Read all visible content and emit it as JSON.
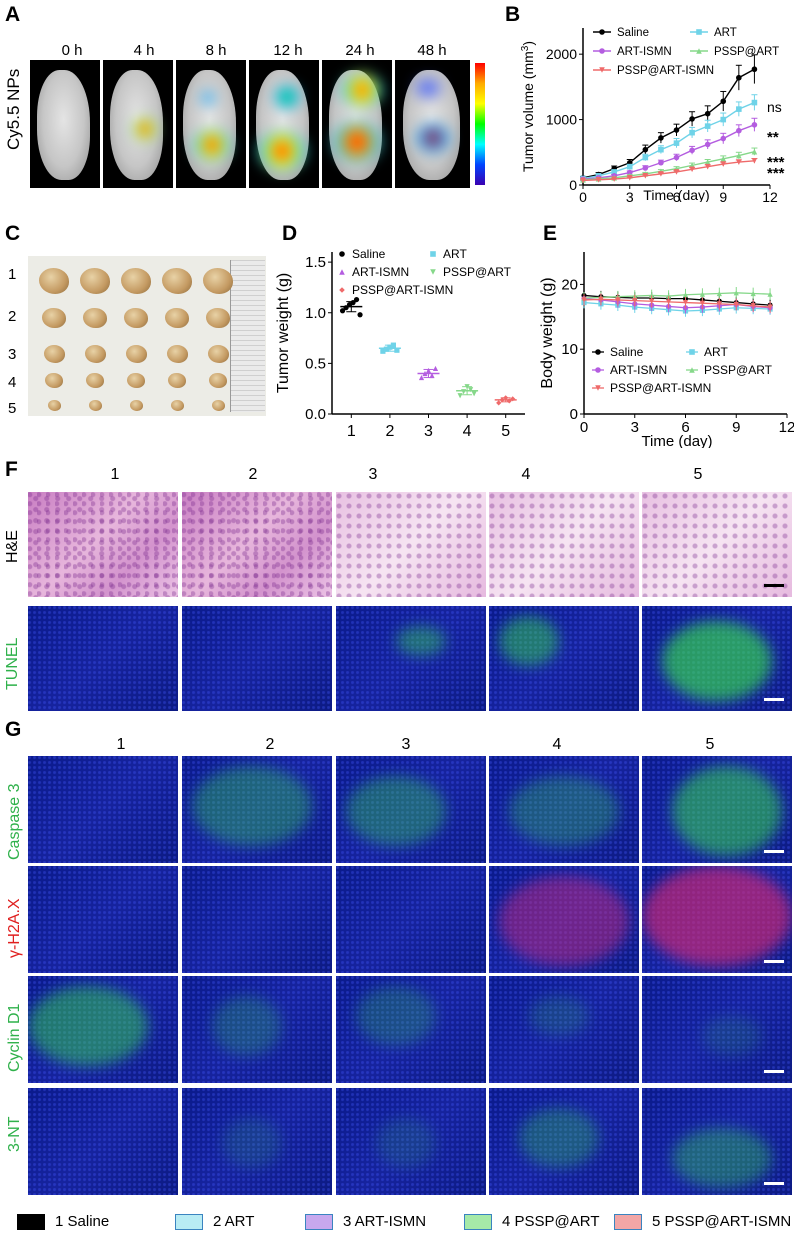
{
  "panel_labels": [
    "A",
    "B",
    "C",
    "D",
    "E",
    "F",
    "G"
  ],
  "panelA": {
    "timepoints": [
      "0 h",
      "4 h",
      "8 h",
      "12 h",
      "24 h",
      "48 h"
    ],
    "row_label": "Cy5.5 NPs"
  },
  "panelC": {
    "row_numbers": [
      "1",
      "2",
      "3",
      "4",
      "5"
    ]
  },
  "groups": [
    "1",
    "2",
    "3",
    "4",
    "5"
  ],
  "panelF": {
    "rows": [
      "H&E",
      "TUNEL"
    ]
  },
  "panelG": {
    "rows": [
      "Caspase 3",
      "γ-H2A.X",
      "Cyclin D1",
      "3-NT"
    ]
  },
  "legend": [
    {
      "label": "1 Saline",
      "color": "#000000"
    },
    {
      "label": "2 ART",
      "color": "#b8ecf4"
    },
    {
      "label": "3 ART-ISMN",
      "color": "#c8a8ee"
    },
    {
      "label": "4 PSSP@ART",
      "color": "#a6eaa8"
    },
    {
      "label": "5 PSSP@ART-ISMN",
      "color": "#f2a6a6"
    }
  ],
  "chart_data": [
    {
      "type": "line",
      "panel": "B",
      "xlabel": "Time (day)",
      "ylabel": "Tumor volume (mm",
      "ylabel_sup": "3",
      "ylabel_end": ")",
      "xlim": [
        0,
        12
      ],
      "ylim": [
        0,
        2400
      ],
      "xticks": [
        "0",
        "3",
        "6",
        "9",
        "12"
      ],
      "yticks": [
        "0",
        "1000",
        "2000"
      ],
      "x": [
        0,
        1,
        2,
        3,
        4,
        5,
        6,
        7,
        8,
        9,
        10,
        11
      ],
      "series": [
        {
          "name": "Saline",
          "color": "#000000",
          "marker": "circle",
          "values": [
            110,
            160,
            250,
            340,
            540,
            720,
            840,
            1010,
            1090,
            1280,
            1640,
            1770
          ],
          "err": [
            20,
            30,
            40,
            50,
            70,
            80,
            90,
            110,
            120,
            150,
            190,
            220
          ]
        },
        {
          "name": "ART",
          "color": "#6fd3e8",
          "marker": "square",
          "values": [
            100,
            140,
            200,
            280,
            420,
            540,
            640,
            800,
            900,
            1000,
            1160,
            1260
          ],
          "err": [
            15,
            20,
            25,
            35,
            50,
            60,
            70,
            80,
            90,
            100,
            110,
            120
          ]
        },
        {
          "name": "ART-ISMN",
          "color": "#b45de0",
          "marker": "circle",
          "values": [
            90,
            110,
            140,
            190,
            260,
            340,
            420,
            530,
            620,
            710,
            830,
            920
          ],
          "err": [
            12,
            15,
            20,
            25,
            35,
            40,
            50,
            60,
            70,
            80,
            90,
            100
          ]
        },
        {
          "name": "PSSP@ART",
          "color": "#86d88a",
          "marker": "triangle-up",
          "values": [
            80,
            95,
            110,
            140,
            170,
            210,
            250,
            300,
            350,
            400,
            450,
            510
          ],
          "err": [
            10,
            12,
            15,
            18,
            22,
            25,
            30,
            35,
            40,
            45,
            50,
            55
          ]
        },
        {
          "name": "PSSP@ART-ISMN",
          "color": "#ef6a6a",
          "marker": "triangle-down",
          "values": [
            70,
            80,
            90,
            110,
            140,
            170,
            200,
            240,
            280,
            320,
            350,
            370
          ],
          "err": [
            8,
            10,
            12,
            14,
            16,
            18,
            22,
            25,
            28,
            30,
            32,
            35
          ]
        }
      ],
      "annotations": [
        "ns",
        "**",
        "***",
        "***"
      ]
    },
    {
      "type": "scatter",
      "panel": "D",
      "ylabel": "Tumor weight (g)",
      "ylim": [
        0,
        1.6
      ],
      "xticks": [
        "1",
        "2",
        "3",
        "4",
        "5"
      ],
      "yticks": [
        "0.0",
        "0.5",
        "1.0",
        "1.5"
      ],
      "series": [
        {
          "name": "Saline",
          "color": "#000000",
          "marker": "circle",
          "x": 1,
          "points": [
            1.02,
            1.05,
            1.08,
            1.1,
            1.13,
            0.98
          ],
          "mean": 1.06,
          "sd": 0.05
        },
        {
          "name": "ART",
          "color": "#6fd3e8",
          "marker": "square",
          "x": 2,
          "points": [
            0.62,
            0.64,
            0.66,
            0.68,
            0.63
          ],
          "mean": 0.65,
          "sd": 0.03
        },
        {
          "name": "ART-ISMN",
          "color": "#b45de0",
          "marker": "triangle-up",
          "x": 3,
          "points": [
            0.36,
            0.4,
            0.43,
            0.38,
            0.45
          ],
          "mean": 0.4,
          "sd": 0.04
        },
        {
          "name": "PSSP@ART",
          "color": "#86d88a",
          "marker": "triangle-down",
          "x": 4,
          "points": [
            0.18,
            0.22,
            0.27,
            0.24,
            0.2
          ],
          "mean": 0.23,
          "sd": 0.04
        },
        {
          "name": "PSSP@ART-ISMN",
          "color": "#ef6a6a",
          "marker": "diamond",
          "x": 5,
          "points": [
            0.11,
            0.14,
            0.16,
            0.13,
            0.15
          ],
          "mean": 0.14,
          "sd": 0.02
        }
      ]
    },
    {
      "type": "line",
      "panel": "E",
      "xlabel": "Time (day)",
      "ylabel": "Body weight (g)",
      "xlim": [
        0,
        12
      ],
      "ylim": [
        0,
        25
      ],
      "xticks": [
        "0",
        "3",
        "6",
        "9",
        "12"
      ],
      "yticks": [
        "0",
        "10",
        "20"
      ],
      "x": [
        0,
        1,
        2,
        3,
        4,
        5,
        6,
        7,
        8,
        9,
        10,
        11
      ],
      "series": [
        {
          "name": "Saline",
          "color": "#000000",
          "marker": "circle",
          "values": [
            18.3,
            18.1,
            18.0,
            17.9,
            17.9,
            17.8,
            17.8,
            17.6,
            17.4,
            17.2,
            17.0,
            16.8
          ]
        },
        {
          "name": "ART",
          "color": "#6fd3e8",
          "marker": "square",
          "values": [
            17.2,
            17.0,
            16.8,
            16.5,
            16.3,
            16.1,
            15.9,
            16.0,
            16.2,
            16.4,
            16.3,
            16.2
          ]
        },
        {
          "name": "ART-ISMN",
          "color": "#b45de0",
          "marker": "circle",
          "values": [
            17.8,
            17.6,
            17.3,
            17.0,
            16.8,
            16.6,
            16.4,
            16.5,
            16.7,
            16.9,
            16.6,
            16.4
          ]
        },
        {
          "name": "PSSP@ART",
          "color": "#86d88a",
          "marker": "triangle-up",
          "values": [
            17.9,
            18.0,
            18.1,
            18.2,
            18.3,
            18.2,
            18.4,
            18.5,
            18.6,
            18.7,
            18.6,
            18.5
          ]
        },
        {
          "name": "PSSP@ART-ISMN",
          "color": "#ef6a6a",
          "marker": "triangle-down",
          "values": [
            17.6,
            17.7,
            17.6,
            17.5,
            17.4,
            17.3,
            17.2,
            17.1,
            17.0,
            16.9,
            16.7,
            16.5
          ]
        }
      ]
    }
  ]
}
